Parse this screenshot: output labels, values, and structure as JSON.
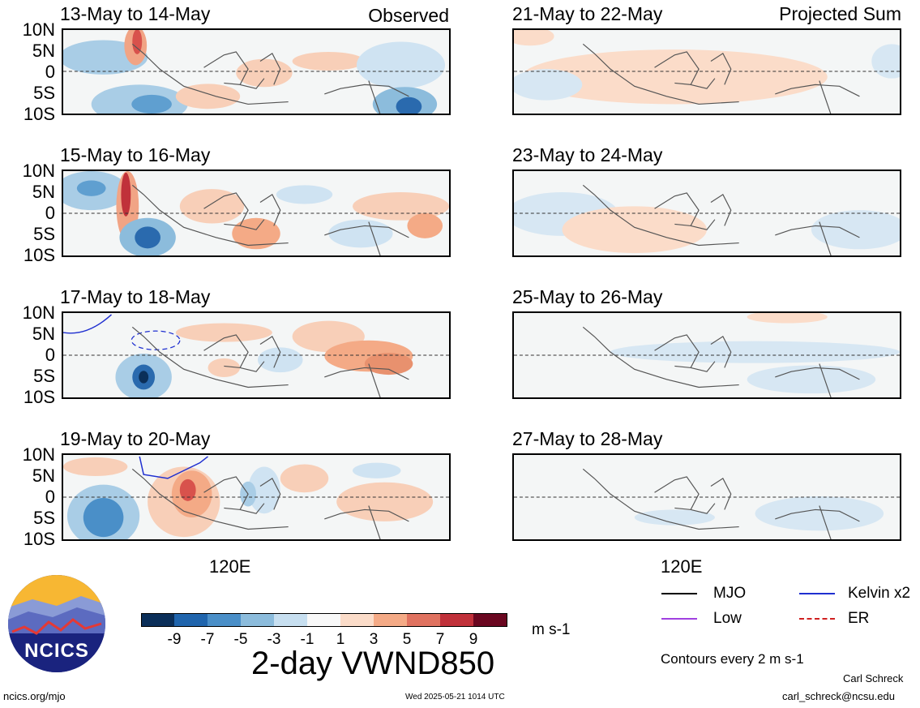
{
  "headers": {
    "left": "Observed",
    "right": "Projected Sum"
  },
  "lat_labels": [
    "10N",
    "5N",
    "0",
    "5S",
    "10S"
  ],
  "lon_label": "120E",
  "observed_panels": [
    {
      "title": "13-May to 14-May"
    },
    {
      "title": "15-May to 16-May"
    },
    {
      "title": "17-May to 18-May"
    },
    {
      "title": "19-May to 20-May"
    }
  ],
  "projected_panels": [
    {
      "title": "21-May to 22-May"
    },
    {
      "title": "23-May to 24-May"
    },
    {
      "title": "25-May to 26-May"
    },
    {
      "title": "27-May to 28-May"
    }
  ],
  "colorbar": {
    "colors": [
      "#0b2f59",
      "#2065ad",
      "#4a8fc8",
      "#8cbcdc",
      "#c7dff0",
      "#f8f8f8",
      "#fbdcc9",
      "#f4aa86",
      "#e07260",
      "#c0313a",
      "#6a0720"
    ],
    "ticks": [
      "-9",
      "-7",
      "-5",
      "-3",
      "-1",
      "1",
      "3",
      "5",
      "7",
      "9"
    ],
    "units": "m s-1"
  },
  "main_title": "2-day VWND850",
  "legend": {
    "items": [
      {
        "label": "MJO",
        "color": "#000000",
        "style": "solid"
      },
      {
        "label": "Kelvin x2",
        "color": "#1f2fd0",
        "style": "solid"
      },
      {
        "label": "Low",
        "color": "#a040e0",
        "style": "solid"
      },
      {
        "label": "ER",
        "color": "#d02020",
        "style": "dashed"
      }
    ],
    "contour_note": "Contours every 2 m s-1"
  },
  "logo_text": "NCICS",
  "footer": {
    "url": "ncics.org/mjo",
    "timestamp": "Wed 2025-05-21 1014 UTC",
    "author": "Carl Schreck",
    "email": "carl_schreck@ncsu.edu"
  }
}
